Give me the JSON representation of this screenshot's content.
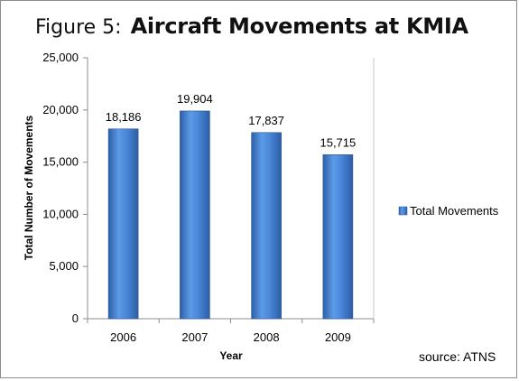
{
  "title": {
    "figure_label": "Figure 5:",
    "text": "Aircraft Movements at KMIA"
  },
  "source": "source: ATNS",
  "chart_data": {
    "type": "bar",
    "title": "Aircraft Movements at KMIA",
    "xlabel": "Year",
    "ylabel": "Total Number of Movements",
    "categories": [
      "2006",
      "2007",
      "2008",
      "2009"
    ],
    "series": [
      {
        "name": "Total Movements",
        "values": [
          18186,
          19904,
          17837,
          15715
        ],
        "labels": [
          "18,186",
          "19,904",
          "17,837",
          "15,715"
        ],
        "color": "#3f7fd1"
      }
    ],
    "ylim": [
      0,
      25000
    ],
    "yticks": [
      0,
      5000,
      10000,
      15000,
      20000,
      25000
    ],
    "ytick_labels": [
      "0",
      "5,000",
      "10,000",
      "15,000",
      "20,000",
      "25,000"
    ],
    "grid": false,
    "legend_position": "right"
  }
}
